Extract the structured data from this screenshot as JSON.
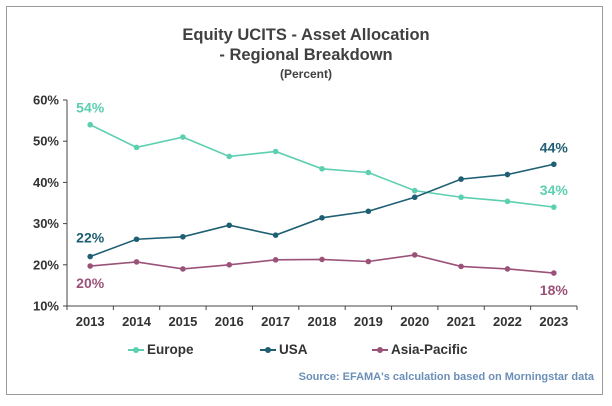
{
  "header": {
    "title_line1": "Equity UCITS - Asset Allocation",
    "title_line2": "- Regional Breakdown",
    "subtitle": "(Percent)"
  },
  "source": "Source: EFAMA's calculation based on Morningstar data",
  "colors": {
    "Europe": "#5ccfb0",
    "USA": "#1f5f73",
    "Asia-Pacific": "#9b5278"
  },
  "chart_data": {
    "type": "line",
    "title": "Equity UCITS - Asset Allocation - Regional Breakdown",
    "subtitle": "(Percent)",
    "x": [
      "2013",
      "2014",
      "2015",
      "2016",
      "2017",
      "2018",
      "2019",
      "2020",
      "2021",
      "2022",
      "2023"
    ],
    "ylim": [
      10,
      60
    ],
    "yticks": [
      "10%",
      "20%",
      "30%",
      "40%",
      "50%",
      "60%"
    ],
    "grid": false,
    "legend": "bottom",
    "series": [
      {
        "name": "Europe",
        "values": [
          54,
          48.5,
          51,
          46.3,
          47.5,
          43.3,
          42.4,
          38,
          36.4,
          35.4,
          34
        ],
        "labels": {
          "first": "54%",
          "last": "34%"
        }
      },
      {
        "name": "USA",
        "values": [
          22,
          26.2,
          26.8,
          29.6,
          27.2,
          31.4,
          33,
          36.4,
          40.8,
          41.9,
          44.4
        ],
        "labels": {
          "first": "22%",
          "last": "44%"
        }
      },
      {
        "name": "Asia-Pacific",
        "values": [
          19.7,
          20.7,
          19,
          20,
          21.2,
          21.3,
          20.8,
          22.4,
          19.6,
          19,
          18
        ],
        "labels": {
          "first": "20%",
          "last": "18%"
        }
      }
    ]
  }
}
